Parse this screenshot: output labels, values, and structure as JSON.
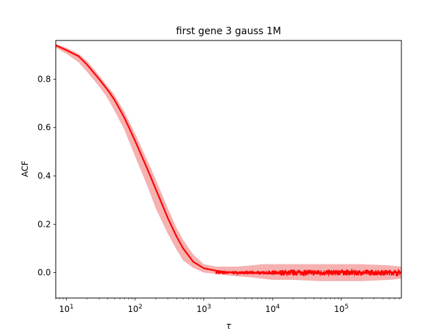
{
  "chart_data": {
    "type": "line",
    "title": "first gene 3 gauss 1M",
    "xlabel": "τ",
    "ylabel": "ACF",
    "xscale": "log",
    "xlim": [
      7,
      750000
    ],
    "ylim": [
      -0.105,
      0.96
    ],
    "xticks": [
      {
        "value": 10,
        "base": "10",
        "exp": "1"
      },
      {
        "value": 100,
        "base": "10",
        "exp": "2"
      },
      {
        "value": 1000,
        "base": "10",
        "exp": "3"
      },
      {
        "value": 10000,
        "base": "10",
        "exp": "4"
      },
      {
        "value": 100000,
        "base": "10",
        "exp": "5"
      }
    ],
    "yticks": [
      0.0,
      0.2,
      0.4,
      0.6,
      0.8
    ],
    "ytick_labels": [
      "0.0",
      "0.2",
      "0.4",
      "0.6",
      "0.8"
    ],
    "grid": false,
    "colors": {
      "line": "#ff0000",
      "band": "#f4a3a3"
    },
    "series": [
      {
        "x": [
          7,
          10,
          15,
          20,
          30,
          40,
          50,
          70,
          100,
          150,
          200,
          300,
          400,
          500,
          700,
          1000,
          1500,
          2000,
          3000,
          5000,
          7000,
          10000,
          20000,
          50000,
          100000,
          200000,
          500000,
          750000
        ],
        "y": [
          0.94,
          0.92,
          0.895,
          0.86,
          0.8,
          0.755,
          0.715,
          0.64,
          0.545,
          0.43,
          0.345,
          0.225,
          0.15,
          0.1,
          0.045,
          0.018,
          0.008,
          0.003,
          0.0,
          -0.002,
          0.0,
          -0.005,
          0.003,
          -0.003,
          0.005,
          0.0,
          0.002,
          0.0
        ],
        "lower": [
          0.93,
          0.905,
          0.87,
          0.83,
          0.77,
          0.72,
          0.67,
          0.59,
          0.48,
          0.36,
          0.265,
          0.16,
          0.095,
          0.05,
          0.02,
          0.0,
          -0.005,
          -0.01,
          -0.015,
          -0.02,
          -0.025,
          -0.03,
          -0.03,
          -0.035,
          -0.035,
          -0.035,
          -0.03,
          -0.025
        ],
        "upper": [
          0.945,
          0.93,
          0.905,
          0.875,
          0.815,
          0.77,
          0.735,
          0.665,
          0.575,
          0.465,
          0.385,
          0.265,
          0.185,
          0.135,
          0.075,
          0.035,
          0.025,
          0.025,
          0.025,
          0.03,
          0.035,
          0.035,
          0.035,
          0.035,
          0.035,
          0.035,
          0.03,
          0.025
        ]
      }
    ]
  }
}
